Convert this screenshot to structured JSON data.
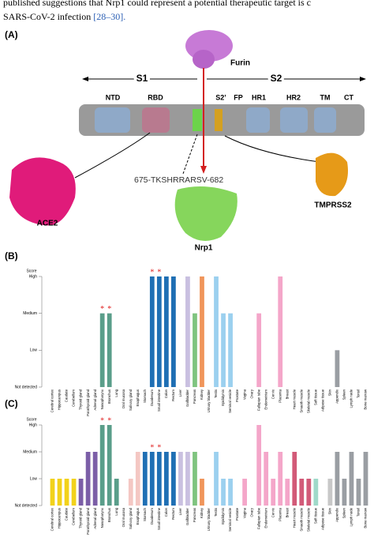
{
  "header": {
    "line1": "published suggestions that Nrp1 could represent a potential therapeutic target is c",
    "line2": "SARS-CoV-2 infection",
    "citation": "[28–30]."
  },
  "panel_a": {
    "label": "(A)",
    "furin": "Furin",
    "s1": "S1",
    "s2": "S2",
    "domains": [
      "NTD",
      "RBD",
      "S2’",
      "FP",
      "HR1",
      "HR2",
      "TM",
      "CT"
    ],
    "sequence": "675-TKSHRRARSV-682",
    "ace2": "ACE2",
    "nrp1": "Nrp1",
    "tmprss2": "TMPRSS2"
  },
  "chart_data": [
    {
      "type": "bar",
      "panel_label": "(B)",
      "ylabel": "Score",
      "categories": [
        "Cerebral cortex",
        "Hippocampus",
        "Caudate",
        "Cerebellum",
        "Thyroid gland",
        "Parathyroid gland",
        "Adrenal gland",
        "Nasopharynx",
        "Bronchus",
        "Lung",
        "Oral mucosa",
        "Salivary gland",
        "Esophagus",
        "Stomach",
        "Duodenum",
        "Small intestine",
        "Colon",
        "Rectum",
        "Liver",
        "Gallbladder",
        "Pancreas",
        "Kidney",
        "Urinary bladder",
        "Testis",
        "Epididymis",
        "Seminal vesicle",
        "Prostate",
        "Vagina",
        "Ovary",
        "Fallopian tube",
        "Endometrium",
        "Cervix",
        "Placenta",
        "Breast",
        "Heart muscle",
        "Smooth muscle",
        "Skeletal muscle",
        "Soft tissue",
        "Adipose tissue",
        "Skin",
        "Appendix",
        "Spleen",
        "Lymph node",
        "Tonsil",
        "Bone marrow"
      ],
      "values": [
        0,
        0,
        0,
        0,
        0,
        0,
        0,
        2,
        2,
        0,
        0,
        0,
        0,
        0,
        3,
        3,
        3,
        3,
        0,
        3,
        2,
        3,
        0,
        3,
        2,
        2,
        0,
        0,
        0,
        2,
        0,
        0,
        3,
        0,
        0,
        0,
        0,
        0,
        0,
        0,
        1,
        0,
        0,
        0,
        0
      ],
      "colors": [
        "#f2d21b",
        "#f2d21b",
        "#f2d21b",
        "#f2d21b",
        "#7b5ea7",
        "#7b5ea7",
        "#7b5ea7",
        "#5a9e8a",
        "#5a9e8a",
        "#5a9e8a",
        "#f4c7c3",
        "#f4c7c3",
        "#f4c7c3",
        "#1f6fb4",
        "#1f6fb4",
        "#1f6fb4",
        "#1f6fb4",
        "#1f6fb4",
        "#c9c0e0",
        "#c9c0e0",
        "#7fc47f",
        "#f0955a",
        "#9bd0ef",
        "#9bd0ef",
        "#9bd0ef",
        "#9bd0ef",
        "#9bd0ef",
        "#f4a6c9",
        "#f4a6c9",
        "#f4a6c9",
        "#f4a6c9",
        "#f4a6c9",
        "#f4a6c9",
        "#f4a6c9",
        "#d25a78",
        "#d25a78",
        "#d25a78",
        "#9fd9c9",
        "#9fd9c9",
        "#c8c8c8",
        "#9a9ea3",
        "#9a9ea3",
        "#9a9ea3",
        "#9a9ea3",
        "#9a9ea3"
      ],
      "ylim": [
        0,
        3
      ],
      "yticks": [
        {
          "value": 0,
          "label": "Not detected"
        },
        {
          "value": 1,
          "label": "Low"
        },
        {
          "value": 2,
          "label": "Medium"
        },
        {
          "value": 3,
          "label": "High"
        }
      ],
      "annotations": [
        {
          "text": "*",
          "category": "Nasopharynx"
        },
        {
          "text": "*",
          "category": "Bronchus"
        },
        {
          "text": "*",
          "category": "Duodenum"
        },
        {
          "text": "*",
          "category": "Small intestine"
        }
      ]
    },
    {
      "type": "bar",
      "panel_label": "(C)",
      "ylabel": "Score",
      "categories": [
        "Cerebral cortex",
        "Hippocampus",
        "Caudate",
        "Cerebellum",
        "Thyroid gland",
        "Parathyroid gland",
        "Adrenal gland",
        "Nasopharynx",
        "Bronchus",
        "Lung",
        "Oral mucosa",
        "Salivary gland",
        "Esophagus",
        "Stomach",
        "Duodenum",
        "Small intestine",
        "Colon",
        "Rectum",
        "Liver",
        "Gallbladder",
        "Pancreas",
        "Kidney",
        "Urinary bladder",
        "Testis",
        "Epididymis",
        "Seminal vesicle",
        "Prostate",
        "Vagina",
        "Ovary",
        "Fallopian tube",
        "Endometrium",
        "Cervix",
        "Placenta",
        "Breast",
        "Heart muscle",
        "Smooth muscle",
        "Skeletal muscle",
        "Soft tissue",
        "Adipose tissue",
        "Skin",
        "Appendix",
        "Spleen",
        "Lymph node",
        "Tonsil",
        "Bone marrow"
      ],
      "values": [
        1,
        1,
        1,
        1,
        1,
        2,
        2,
        3,
        3,
        1,
        0,
        1,
        2,
        2,
        2,
        2,
        2,
        2,
        2,
        2,
        2,
        1,
        0,
        2,
        1,
        1,
        0,
        1,
        0,
        3,
        2,
        1,
        2,
        1,
        2,
        1,
        1,
        1,
        0,
        1,
        2,
        1,
        2,
        1,
        2
      ],
      "colors": [
        "#f2d21b",
        "#f2d21b",
        "#f2d21b",
        "#f2d21b",
        "#7b5ea7",
        "#7b5ea7",
        "#7b5ea7",
        "#5a9e8a",
        "#5a9e8a",
        "#5a9e8a",
        "#f4c7c3",
        "#f4c7c3",
        "#f4c7c3",
        "#1f6fb4",
        "#1f6fb4",
        "#1f6fb4",
        "#1f6fb4",
        "#1f6fb4",
        "#c9c0e0",
        "#c9c0e0",
        "#7fc47f",
        "#f0955a",
        "#9bd0ef",
        "#9bd0ef",
        "#9bd0ef",
        "#9bd0ef",
        "#9bd0ef",
        "#f4a6c9",
        "#f4a6c9",
        "#f4a6c9",
        "#f4a6c9",
        "#f4a6c9",
        "#f4a6c9",
        "#f4a6c9",
        "#d25a78",
        "#d25a78",
        "#d25a78",
        "#9fd9c9",
        "#9fd9c9",
        "#c8c8c8",
        "#9a9ea3",
        "#9a9ea3",
        "#9a9ea3",
        "#9a9ea3",
        "#9a9ea3"
      ],
      "ylim": [
        0,
        3
      ],
      "yticks": [
        {
          "value": 0,
          "label": "Not detected"
        },
        {
          "value": 1,
          "label": "Low"
        },
        {
          "value": 2,
          "label": "Medium"
        },
        {
          "value": 3,
          "label": "High"
        }
      ],
      "annotations": [
        {
          "text": "*",
          "category": "Nasopharynx"
        },
        {
          "text": "*",
          "category": "Bronchus"
        },
        {
          "text": "*",
          "category": "Duodenum"
        },
        {
          "text": "*",
          "category": "Small intestine"
        }
      ]
    }
  ]
}
